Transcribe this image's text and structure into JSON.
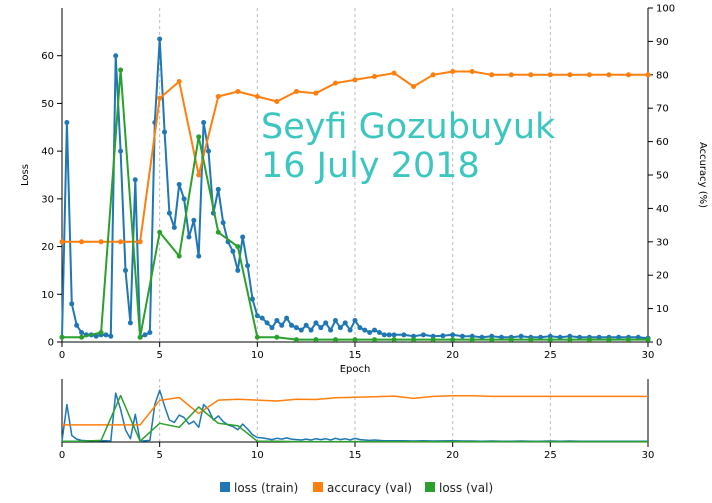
{
  "watermark": {
    "line1": "Seyfi Gozubuyuk",
    "line2": "16 July 2018"
  },
  "colors": {
    "loss_train": "#1f77b4",
    "accuracy_val": "#ff7f0e",
    "loss_val": "#2ca02c",
    "grid": "#bbbbbb"
  },
  "chart_data": [
    {
      "type": "line",
      "xlabel": "Epoch",
      "ylabel": "Loss",
      "y2label": "Accuracy (%)",
      "xlim": [
        0,
        30
      ],
      "ylim": [
        0,
        70
      ],
      "y2lim": [
        0,
        100
      ],
      "xticks": [
        "0",
        "5",
        "10",
        "15",
        "20",
        "25",
        "30"
      ],
      "yticks": [
        "0",
        "10",
        "20",
        "30",
        "40",
        "50",
        "60"
      ],
      "y2ticks": [
        "0",
        "10",
        "20",
        "30",
        "40",
        "50",
        "60",
        "70",
        "80",
        "90",
        "100"
      ],
      "grid": "vertical dashed at x ticks",
      "legend_position": "bottom-center",
      "series": [
        {
          "name": "loss (train)",
          "axis": "left",
          "markers": true,
          "points": [
            [
              0,
              1
            ],
            [
              0.25,
              46
            ],
            [
              0.5,
              8
            ],
            [
              0.75,
              3.5
            ],
            [
              1,
              2
            ],
            [
              1.25,
              1.5
            ],
            [
              1.5,
              1.5
            ],
            [
              1.75,
              1.2
            ],
            [
              2,
              1.5
            ],
            [
              2.25,
              1.5
            ],
            [
              2.5,
              1.2
            ],
            [
              2.75,
              60
            ],
            [
              3,
              40
            ],
            [
              3.25,
              15
            ],
            [
              3.5,
              4
            ],
            [
              3.75,
              34
            ],
            [
              4,
              1
            ],
            [
              4.25,
              1.5
            ],
            [
              4.5,
              2
            ],
            [
              4.75,
              46
            ],
            [
              5,
              63.5
            ],
            [
              5.25,
              44
            ],
            [
              5.5,
              27
            ],
            [
              5.75,
              24
            ],
            [
              6,
              33
            ],
            [
              6.25,
              30
            ],
            [
              6.5,
              22
            ],
            [
              6.75,
              25.5
            ],
            [
              7,
              18
            ],
            [
              7.25,
              46
            ],
            [
              7.5,
              40
            ],
            [
              7.75,
              27
            ],
            [
              8,
              32
            ],
            [
              8.25,
              25
            ],
            [
              8.5,
              21
            ],
            [
              8.75,
              19
            ],
            [
              9,
              15
            ],
            [
              9.25,
              22
            ],
            [
              9.5,
              16
            ],
            [
              9.75,
              9
            ],
            [
              10,
              5.5
            ],
            [
              10.25,
              5
            ],
            [
              10.5,
              4
            ],
            [
              10.75,
              3
            ],
            [
              11,
              4.5
            ],
            [
              11.25,
              3.5
            ],
            [
              11.5,
              5
            ],
            [
              11.75,
              3.5
            ],
            [
              12,
              3
            ],
            [
              12.25,
              2.5
            ],
            [
              12.5,
              3.5
            ],
            [
              12.75,
              2.5
            ],
            [
              13,
              4
            ],
            [
              13.25,
              3
            ],
            [
              13.5,
              4
            ],
            [
              13.75,
              2.5
            ],
            [
              14,
              4.5
            ],
            [
              14.25,
              3
            ],
            [
              14.5,
              4
            ],
            [
              14.75,
              2.5
            ],
            [
              15,
              4.5
            ],
            [
              15.25,
              3
            ],
            [
              15.5,
              2.5
            ],
            [
              15.75,
              2
            ],
            [
              16,
              2.5
            ],
            [
              16.25,
              2
            ],
            [
              16.5,
              1.5
            ],
            [
              16.75,
              1.5
            ],
            [
              17,
              1.5
            ],
            [
              17.5,
              1.5
            ],
            [
              18,
              1.2
            ],
            [
              18.5,
              1.5
            ],
            [
              19,
              1.2
            ],
            [
              19.5,
              1.3
            ],
            [
              20,
              1.5
            ],
            [
              20.5,
              1.2
            ],
            [
              21,
              1.2
            ],
            [
              21.5,
              1
            ],
            [
              22,
              1.2
            ],
            [
              22.5,
              1
            ],
            [
              23,
              1
            ],
            [
              23.5,
              1.2
            ],
            [
              24,
              1
            ],
            [
              24.5,
              1
            ],
            [
              25,
              1.2
            ],
            [
              25.5,
              1
            ],
            [
              26,
              1.2
            ],
            [
              26.5,
              1
            ],
            [
              27,
              1
            ],
            [
              27.5,
              1
            ],
            [
              28,
              1
            ],
            [
              28.5,
              1
            ],
            [
              29,
              1
            ],
            [
              29.5,
              1
            ],
            [
              30,
              0.8
            ]
          ]
        },
        {
          "name": "accuracy (val)",
          "axis": "right",
          "markers": true,
          "points": [
            [
              0,
              30
            ],
            [
              1,
              30
            ],
            [
              2,
              30
            ],
            [
              3,
              30
            ],
            [
              4,
              30
            ],
            [
              5,
              73
            ],
            [
              6,
              78
            ],
            [
              7,
              50
            ],
            [
              8,
              73.5
            ],
            [
              9,
              75
            ],
            [
              10,
              73.5
            ],
            [
              11,
              72
            ],
            [
              12,
              75
            ],
            [
              13,
              74.5
            ],
            [
              14,
              77.5
            ],
            [
              15,
              78.5
            ],
            [
              16,
              79.5
            ],
            [
              17,
              80.5
            ],
            [
              18,
              76.5
            ],
            [
              19,
              80
            ],
            [
              20,
              81
            ],
            [
              21,
              81
            ],
            [
              22,
              80
            ],
            [
              23,
              80
            ],
            [
              24,
              80
            ],
            [
              25,
              80
            ],
            [
              26,
              80
            ],
            [
              27,
              80
            ],
            [
              28,
              80
            ],
            [
              29,
              80
            ],
            [
              30,
              80
            ]
          ]
        },
        {
          "name": "loss (val)",
          "axis": "left",
          "markers": true,
          "points": [
            [
              0,
              1
            ],
            [
              1,
              1
            ],
            [
              2,
              2
            ],
            [
              3,
              57
            ],
            [
              4,
              1
            ],
            [
              5,
              23
            ],
            [
              6,
              18
            ],
            [
              7,
              43
            ],
            [
              8,
              23
            ],
            [
              9,
              20
            ],
            [
              10,
              1
            ],
            [
              11,
              1
            ],
            [
              12,
              0.5
            ],
            [
              13,
              0.5
            ],
            [
              14,
              0.5
            ],
            [
              15,
              0.5
            ],
            [
              16,
              0.5
            ],
            [
              17,
              0.5
            ],
            [
              18,
              0.5
            ],
            [
              19,
              0.5
            ],
            [
              20,
              0.5
            ],
            [
              21,
              0.5
            ],
            [
              22,
              0.5
            ],
            [
              23,
              0.5
            ],
            [
              24,
              0.5
            ],
            [
              25,
              0.5
            ],
            [
              26,
              0.5
            ],
            [
              27,
              0.5
            ],
            [
              28,
              0.5
            ],
            [
              29,
              0.5
            ],
            [
              30,
              0.5
            ]
          ]
        }
      ]
    },
    {
      "type": "line",
      "role": "overview",
      "xlim": [
        0,
        30
      ],
      "xticks": [
        "0",
        "5",
        "10",
        "15",
        "20",
        "25",
        "30"
      ],
      "series_ref": [
        "loss (train)",
        "accuracy (val)",
        "loss (val)"
      ]
    }
  ],
  "legend": [
    {
      "name": "loss (train)",
      "color": "#1f77b4"
    },
    {
      "name": "accuracy (val)",
      "color": "#ff7f0e"
    },
    {
      "name": "loss (val)",
      "color": "#2ca02c"
    }
  ]
}
